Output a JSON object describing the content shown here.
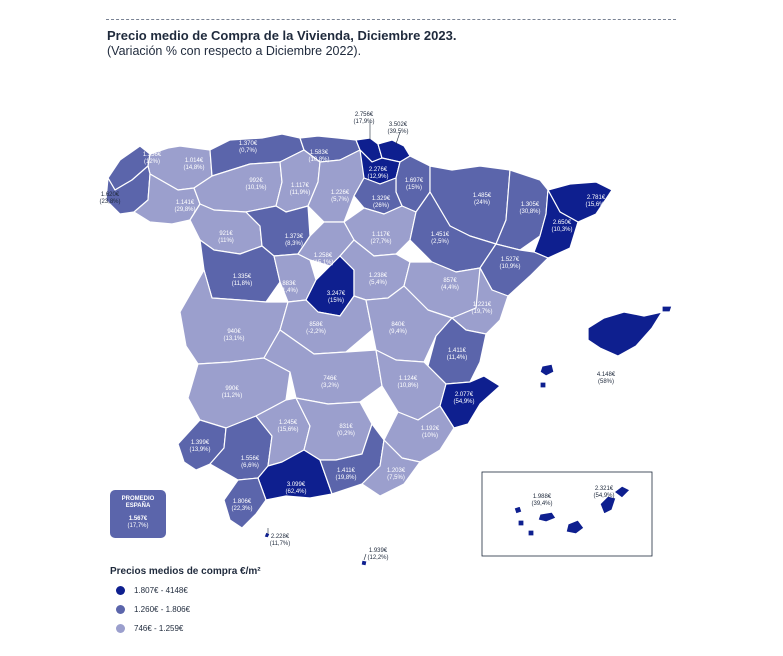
{
  "header": {
    "title": "Precio medio de Compra de la Vivienda, Diciembre 2023.",
    "subtitle": "(Variación % con respecto a Diciembre 2022)."
  },
  "colors": {
    "high": "#0e1f8f",
    "mid": "#5b65ab",
    "low": "#9b9fcd",
    "border": "#ffffff"
  },
  "provinces": [
    {
      "id": "a-coruna",
      "price": "1.620€",
      "change": "(23,8%)",
      "tier": "mid"
    },
    {
      "id": "lugo",
      "price": "1.014€",
      "change": "(14,8%)",
      "tier": "low"
    },
    {
      "id": "asturias",
      "price": "1.370€",
      "change": "(0,7%)",
      "tier": "mid"
    },
    {
      "id": "cantabria",
      "price": "1.583€",
      "change": "(10,8%)",
      "tier": "mid"
    },
    {
      "id": "bizkaia",
      "price": "2.756€",
      "change": "(17,9%)",
      "tier": "high"
    },
    {
      "id": "gipuzkoa",
      "price": "3.502€",
      "change": "(39,5%)",
      "tier": "high"
    },
    {
      "id": "pontevedra",
      "price": "1.356€",
      "change": "(12%)",
      "tier": "mid"
    },
    {
      "id": "ourense",
      "price": "1.141€",
      "change": "(29,8%)",
      "tier": "low"
    },
    {
      "id": "leon",
      "price": "992€",
      "change": "(10,1%)",
      "tier": "low"
    },
    {
      "id": "palencia",
      "price": "1.117€",
      "change": "(11,9%)",
      "tier": "low"
    },
    {
      "id": "burgos",
      "price": "1.226€",
      "change": "(5,7%)",
      "tier": "low"
    },
    {
      "id": "alava",
      "price": "2.276€",
      "change": "(12,9%)",
      "tier": "high"
    },
    {
      "id": "navarra",
      "price": "1.697€",
      "change": "(15%)",
      "tier": "mid"
    },
    {
      "id": "la-rioja",
      "price": "1.329€",
      "change": "(26%)",
      "tier": "mid"
    },
    {
      "id": "huesca",
      "price": "1.485€",
      "change": "(24%)",
      "tier": "mid"
    },
    {
      "id": "lleida",
      "price": "1.305€",
      "change": "(30,8%)",
      "tier": "mid"
    },
    {
      "id": "girona",
      "price": "2.781€",
      "change": "(15,6%)",
      "tier": "high"
    },
    {
      "id": "barcelona",
      "price": "2.650€",
      "change": "(10,3%)",
      "tier": "high"
    },
    {
      "id": "zamora",
      "price": "921€",
      "change": "(11%)",
      "tier": "low"
    },
    {
      "id": "valladolid",
      "price": "1.373€",
      "change": "(8,3%)",
      "tier": "mid"
    },
    {
      "id": "soria",
      "price": "1.117€",
      "change": "(27,7%)",
      "tier": "low"
    },
    {
      "id": "zaragoza",
      "price": "1.451€",
      "change": "(2,5%)",
      "tier": "mid"
    },
    {
      "id": "tarragona",
      "price": "1.527€",
      "change": "(10,9%)",
      "tier": "mid"
    },
    {
      "id": "salamanca",
      "price": "1.335€",
      "change": "(11,8%)",
      "tier": "mid"
    },
    {
      "id": "avila",
      "price": "883€",
      "change": "(1,4%)",
      "tier": "low"
    },
    {
      "id": "segovia",
      "price": "1.258€",
      "change": "(15,1%)",
      "tier": "low"
    },
    {
      "id": "madrid",
      "price": "3.247€",
      "change": "(15%)",
      "tier": "high"
    },
    {
      "id": "guadalajara",
      "price": "1.238€",
      "change": "(5,4%)",
      "tier": "low"
    },
    {
      "id": "teruel",
      "price": "857€",
      "change": "(4,4%)",
      "tier": "low"
    },
    {
      "id": "castellon",
      "price": "1.221€",
      "change": "(19,7%)",
      "tier": "low"
    },
    {
      "id": "caceres",
      "price": "940€",
      "change": "(13,1%)",
      "tier": "low"
    },
    {
      "id": "toledo",
      "price": "858€",
      "change": "(-2,2%)",
      "tier": "low"
    },
    {
      "id": "cuenca",
      "price": "840€",
      "change": "(9,4%)",
      "tier": "low"
    },
    {
      "id": "valencia",
      "price": "1.411€",
      "change": "(11,4%)",
      "tier": "mid"
    },
    {
      "id": "baleares",
      "price": "4.148€",
      "change": "(58%)",
      "tier": "high"
    },
    {
      "id": "badajoz",
      "price": "990€",
      "change": "(11,2%)",
      "tier": "low"
    },
    {
      "id": "ciudad-real",
      "price": "746€",
      "change": "(3,2%)",
      "tier": "low"
    },
    {
      "id": "albacete",
      "price": "1.124€",
      "change": "(10,8%)",
      "tier": "low"
    },
    {
      "id": "alicante",
      "price": "2.077€",
      "change": "(54,9%)",
      "tier": "high"
    },
    {
      "id": "huelva",
      "price": "1.399€",
      "change": "(13,9%)",
      "tier": "mid"
    },
    {
      "id": "sevilla",
      "price": "1.556€",
      "change": "(6,6%)",
      "tier": "mid"
    },
    {
      "id": "cordoba",
      "price": "1.245€",
      "change": "(15,6%)",
      "tier": "low"
    },
    {
      "id": "jaen",
      "price": "831€",
      "change": "(0,2%)",
      "tier": "low"
    },
    {
      "id": "murcia",
      "price": "1.192€",
      "change": "(10%)",
      "tier": "low"
    },
    {
      "id": "malaga",
      "price": "3.099€",
      "change": "(62,4%)",
      "tier": "high"
    },
    {
      "id": "granada",
      "price": "1.411€",
      "change": "(19,8%)",
      "tier": "mid"
    },
    {
      "id": "almeria",
      "price": "1.203€",
      "change": "(7,5%)",
      "tier": "low"
    },
    {
      "id": "cadiz",
      "price": "1.806€",
      "change": "(22,3%)",
      "tier": "mid"
    },
    {
      "id": "ceuta",
      "price": "2.228€",
      "change": "(11,7%)",
      "tier": "high"
    },
    {
      "id": "melilla",
      "price": "1.939€",
      "change": "(12,2%)",
      "tier": "high"
    },
    {
      "id": "santa-cruz-tenerife",
      "price": "1.988€",
      "change": "(39,4%)",
      "tier": "high"
    },
    {
      "id": "las-palmas",
      "price": "2.321€",
      "change": "(54,9%)",
      "tier": "high"
    }
  ],
  "average": {
    "label": "PROMEDIO ESPAÑA",
    "price": "1.567€",
    "change": "(17,7%)"
  },
  "legend": {
    "title": "Precios medios de compra €/m²",
    "items": [
      {
        "label": "1.807€ - 4148€",
        "tier": "high"
      },
      {
        "label": "1.260€ - 1.806€",
        "tier": "mid"
      },
      {
        "label": "746€ - 1.259€",
        "tier": "low"
      }
    ]
  }
}
